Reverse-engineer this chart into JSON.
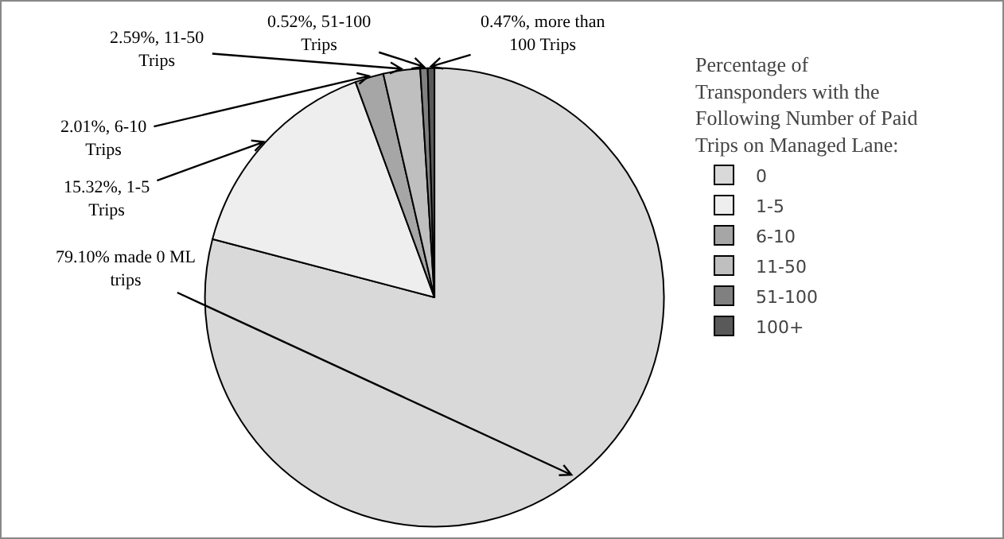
{
  "chart_data": {
    "type": "pie",
    "legend_title": "Percentage of Transponders with the Following Number of Paid Trips on Managed Lane:",
    "categories": [
      "0",
      "1-5",
      "6-10",
      "11-50",
      "51-100",
      "100+"
    ],
    "values": [
      79.1,
      15.32,
      2.01,
      2.59,
      0.52,
      0.47
    ],
    "colors": [
      "#d9d9d9",
      "#eeeeee",
      "#a6a6a6",
      "#bfbfbf",
      "#808080",
      "#595959"
    ],
    "value_labels": [
      "79.10% made 0 ML trips",
      "15.32%, 1-5 Trips",
      "2.01%, 6-10 Trips",
      "2.59%, 11-50 Trips",
      "0.52%, 51-100 Trips",
      "0.47%, more than 100 Trips"
    ],
    "legend": "right"
  }
}
